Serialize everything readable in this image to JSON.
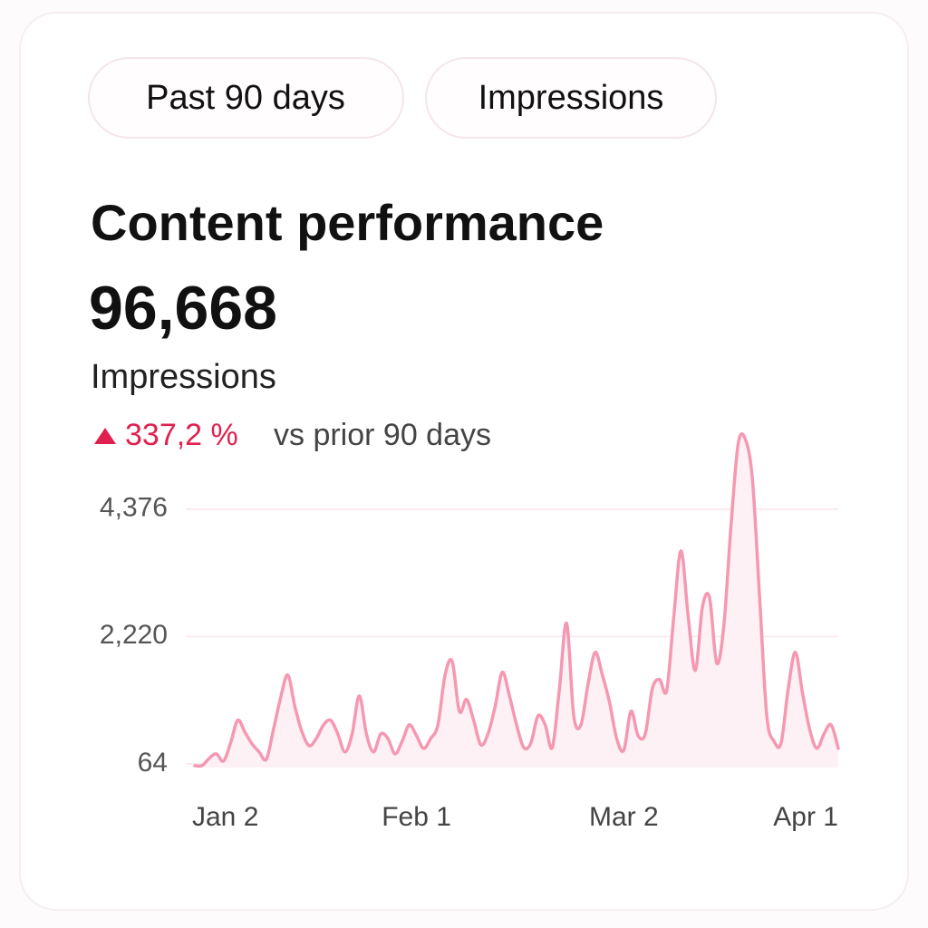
{
  "filters": [
    "Past 90 days",
    "Impressions"
  ],
  "title": "Content performance",
  "total": "96,668",
  "metric": "Impressions",
  "change": "337,2 %",
  "comparison": "vs prior 90 days",
  "chart_data": {
    "type": "area",
    "categories": [
      null,
      "Jan 2",
      null,
      null,
      null,
      null,
      null,
      null,
      null,
      null,
      null,
      null,
      null,
      null,
      null,
      null,
      null,
      null,
      null,
      null,
      null,
      null,
      null,
      null,
      null,
      null,
      null,
      null,
      null,
      null,
      null,
      "Feb 1",
      null,
      null,
      null,
      null,
      null,
      null,
      null,
      null,
      null,
      null,
      null,
      null,
      null,
      null,
      null,
      null,
      null,
      null,
      null,
      null,
      null,
      null,
      null,
      null,
      null,
      null,
      null,
      null,
      "Mar 2",
      null,
      null,
      null,
      null,
      null,
      null,
      null,
      null,
      null,
      null,
      null,
      null,
      null,
      null,
      null,
      null,
      null,
      null,
      null,
      null,
      null,
      null,
      null,
      null,
      null,
      null,
      null,
      null,
      null,
      "Apr 1"
    ],
    "series": [
      {
        "name": "Impressions",
        "color": "#f598b2",
        "values": [
          33,
          33,
          156,
          233,
          110,
          417,
          801,
          601,
          402,
          264,
          141,
          647,
          1185,
          1568,
          1031,
          601,
          371,
          494,
          724,
          801,
          570,
          264,
          570,
          1215,
          570,
          264,
          570,
          494,
          233,
          448,
          724,
          540,
          325,
          494,
          724,
          1568,
          1799,
          954,
          1154,
          801,
          386,
          570,
          1031,
          1614,
          1215,
          724,
          340,
          417,
          878,
          724,
          340,
          1338,
          2443,
          878,
          724,
          1415,
          1952,
          1568,
          1108,
          494,
          294,
          954,
          540,
          570,
          1338,
          1492,
          1307,
          2566,
          3671,
          2566,
          1645,
          2720,
          2873,
          1768,
          2413,
          4101,
          5483,
          5559,
          4868,
          2873,
          878,
          448,
          417,
          1338,
          1952,
          1261,
          647,
          325,
          570,
          724,
          325
        ]
      }
    ],
    "ylim": [
      0,
      5800
    ],
    "yticks": [
      64,
      {
        "value": 2220,
        "label": "2,220"
      },
      {
        "value": 4376,
        "label": "4,376"
      }
    ],
    "grid": true
  }
}
